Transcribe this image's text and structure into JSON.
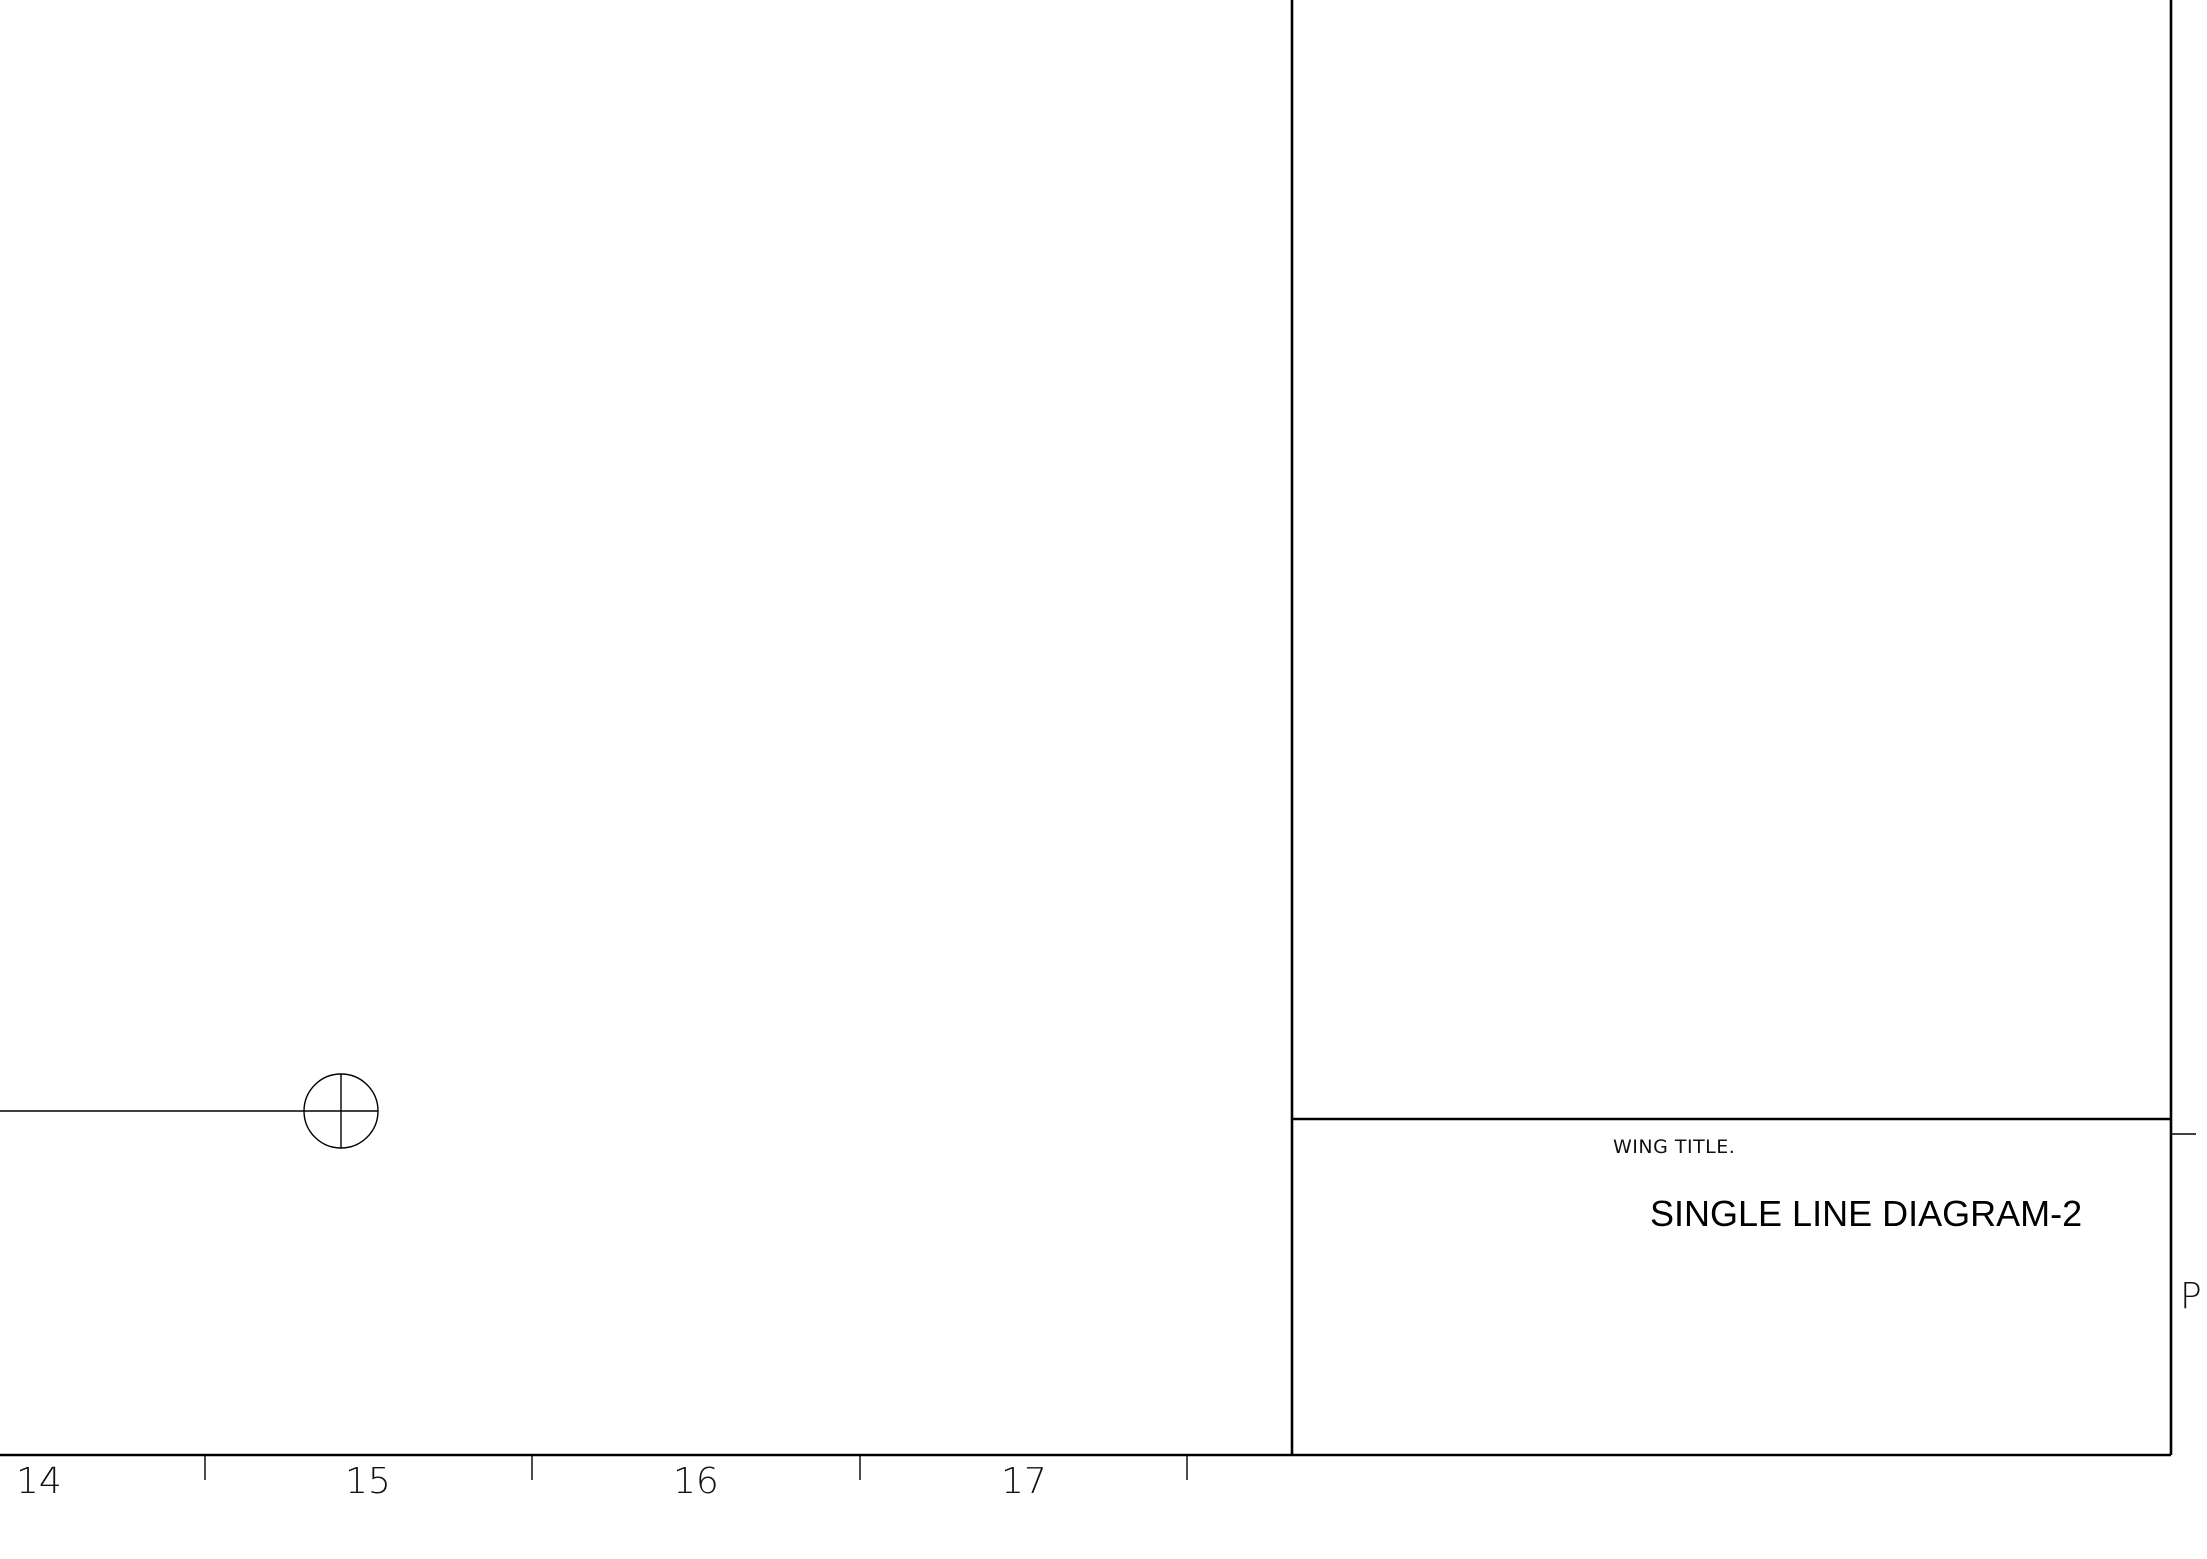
{
  "grid_columns": [
    "14",
    "15",
    "16",
    "17"
  ],
  "grid_row_label": "P",
  "title_block": {
    "wing_title_label": "WING TITLE.",
    "drawing_title": "SINGLE LINE DIAGRAM-2"
  }
}
